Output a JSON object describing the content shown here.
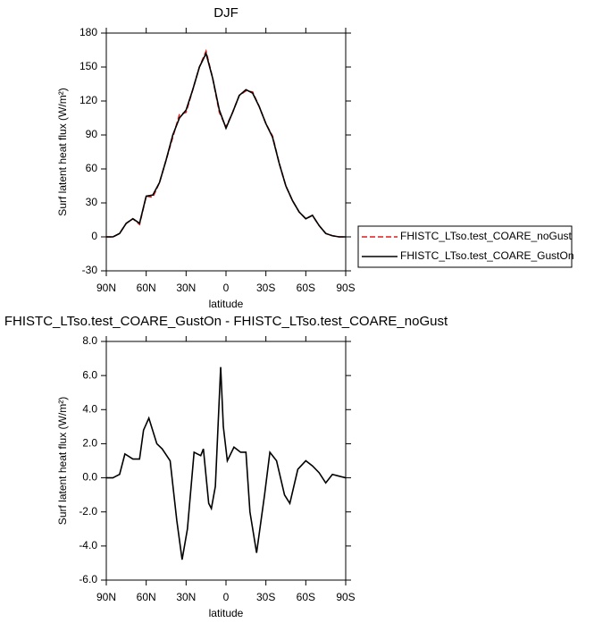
{
  "chart_data": [
    {
      "type": "line",
      "title": "DJF",
      "xlabel": "latitude",
      "ylabel": "Surf latent heat flux (W/m²)",
      "x": [
        90,
        85,
        80,
        75,
        70,
        65,
        60,
        55,
        50,
        45,
        40,
        35,
        30,
        25,
        20,
        15,
        10,
        5,
        0,
        -5,
        -10,
        -15,
        -20,
        -25,
        -30,
        -35,
        -40,
        -45,
        -50,
        -55,
        -60,
        -65,
        -70,
        -75,
        -80,
        -85,
        -90
      ],
      "series": [
        {
          "name": "FHISTC_LTso.test_COARE_noGust",
          "color": "#e41a1c",
          "linestyle": "dashed",
          "values": [
            0,
            0,
            3,
            12,
            16,
            11,
            36,
            35,
            48,
            68,
            88,
            108,
            110,
            130,
            150,
            164,
            140,
            110,
            97,
            110,
            125,
            129,
            128,
            115,
            100,
            89,
            65,
            45,
            32,
            22,
            16,
            19,
            10,
            3,
            1,
            0,
            0
          ]
        },
        {
          "name": "FHISTC_LTso.test_COARE_GustOn",
          "color": "#000000",
          "linestyle": "solid",
          "values": [
            0,
            0,
            3,
            12,
            16,
            12,
            36,
            37,
            48,
            68,
            90,
            105,
            112,
            130,
            150,
            162,
            140,
            112,
            96,
            110,
            125,
            130,
            127,
            115,
            100,
            88,
            65,
            45,
            32,
            22,
            16,
            19,
            10,
            3,
            1,
            0,
            0
          ]
        }
      ],
      "xlim": [
        90,
        -90
      ],
      "xticks": [
        {
          "value": 90,
          "label": "90N"
        },
        {
          "value": 60,
          "label": "60N"
        },
        {
          "value": 30,
          "label": "30N"
        },
        0,
        {
          "value": -30,
          "label": "30S"
        },
        {
          "value": -60,
          "label": "60S"
        },
        {
          "value": -90,
          "label": "90S"
        }
      ],
      "ylim": [
        -30,
        180
      ],
      "yticks": [
        -30,
        0,
        30,
        60,
        90,
        120,
        150,
        180
      ],
      "legend": "right"
    },
    {
      "type": "line",
      "title": "FHISTC_LTso.test_COARE_GustOn - FHISTC_LTso.test_COARE_noGust",
      "xlabel": "latitude",
      "ylabel": "Surf latent heat flux (W/m²)",
      "x": [
        90,
        85,
        80,
        76,
        70,
        65,
        62,
        58,
        52,
        48,
        42,
        37,
        33,
        29,
        24,
        19,
        17,
        13,
        11,
        8,
        4,
        2,
        -1,
        -6,
        -11,
        -15,
        -18,
        -23,
        -29,
        -33,
        -38,
        -44,
        -48,
        -54,
        -60,
        -65,
        -70,
        -75,
        -80,
        -85,
        -90
      ],
      "values": [
        0,
        0,
        0.2,
        1.4,
        1.1,
        1.1,
        2.8,
        3.5,
        2.0,
        1.7,
        1.0,
        -2.5,
        -4.8,
        -3.0,
        1.5,
        1.3,
        1.7,
        -1.5,
        -1.8,
        -0.5,
        6.5,
        3.0,
        1.0,
        1.8,
        1.5,
        1.5,
        -2.0,
        -4.4,
        -1.0,
        1.5,
        1.0,
        -1.0,
        -1.5,
        0.5,
        1.0,
        0.7,
        0.3,
        -0.3,
        0.2,
        0.1,
        0
      ],
      "color": "#000000",
      "xlim": [
        90,
        -90
      ],
      "xticks": [
        {
          "value": 90,
          "label": "90N"
        },
        {
          "value": 60,
          "label": "60N"
        },
        {
          "value": 30,
          "label": "30N"
        },
        0,
        {
          "value": -30,
          "label": "30S"
        },
        {
          "value": -60,
          "label": "60S"
        },
        {
          "value": -90,
          "label": "90S"
        }
      ],
      "ylim": [
        -6,
        8
      ],
      "yticks": [
        {
          "value": -6,
          "label": "-6.0"
        },
        {
          "value": -4,
          "label": "-4.0"
        },
        {
          "value": -2,
          "label": "-2.0"
        },
        {
          "value": 0,
          "label": "0.0"
        },
        {
          "value": 2,
          "label": "2.0"
        },
        {
          "value": 4,
          "label": "4.0"
        },
        {
          "value": 6,
          "label": "6.0"
        },
        {
          "value": 8,
          "label": "8.0"
        }
      ]
    }
  ]
}
